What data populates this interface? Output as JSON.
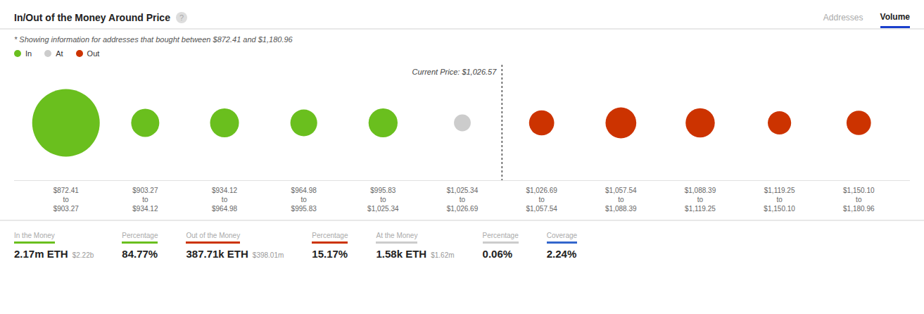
{
  "chart_data": {
    "type": "bubble",
    "title": "In/Out of the Money Around Price",
    "help_icon": "?",
    "tabs": [
      "Addresses",
      "Volume"
    ],
    "active_tab": "Volume",
    "subtitle": "* Showing information for addresses that bought between $872.41 and $1,180.96",
    "categories": [
      "$872.41\nto\n$903.27",
      "$903.27\nto\n$934.12",
      "$934.12\nto\n$964.98",
      "$964.98\nto\n$995.83",
      "$995.83\nto\n$1,025.34",
      "$1,025.34\nto\n$1,026.69",
      "$1,026.69\nto\n$1,057.54",
      "$1,057.54\nto\n$1,088.39",
      "$1,088.39\nto\n$1,119.25",
      "$1,119.25\nto\n$1,150.10",
      "$1,150.10\nto\n$1,180.96"
    ],
    "series": [
      {
        "name": "In",
        "color": "#6abf1e",
        "sizes": [
          5200,
          900,
          950,
          820,
          960,
          null,
          null,
          null,
          null,
          null,
          null
        ]
      },
      {
        "name": "At",
        "color": "#cccccc",
        "sizes": [
          null,
          null,
          null,
          null,
          null,
          320,
          null,
          null,
          null,
          null,
          null
        ]
      },
      {
        "name": "Out",
        "color": "#cc3300",
        "sizes": [
          null,
          null,
          null,
          null,
          null,
          null,
          720,
          1080,
          970,
          620,
          680
        ]
      }
    ],
    "legend": "top left",
    "grid": false,
    "tick_labels": "x",
    "vline": {
      "x": 5.5,
      "label": "Current Price: $1,026.57"
    },
    "stats": [
      {
        "label": "In the Money",
        "color": "#6abf1e",
        "main": "2.17m ETH",
        "sub": "$2.22b"
      },
      {
        "label": "Percentage",
        "color": "#6abf1e",
        "main": "84.77%"
      },
      {
        "label": "Out of the Money",
        "color": "#cc3300",
        "main": "387.71k ETH",
        "sub": "$398.01m"
      },
      {
        "label": "Percentage",
        "color": "#cc3300",
        "main": "15.17%"
      },
      {
        "label": "At the Money",
        "color": "#cccccc",
        "main": "1.58k ETH",
        "sub": "$1.62m"
      },
      {
        "label": "Percentage",
        "color": "#cccccc",
        "main": "0.06%"
      },
      {
        "label": "Coverage",
        "color": "#3366cc",
        "main": "2.24%"
      }
    ]
  }
}
